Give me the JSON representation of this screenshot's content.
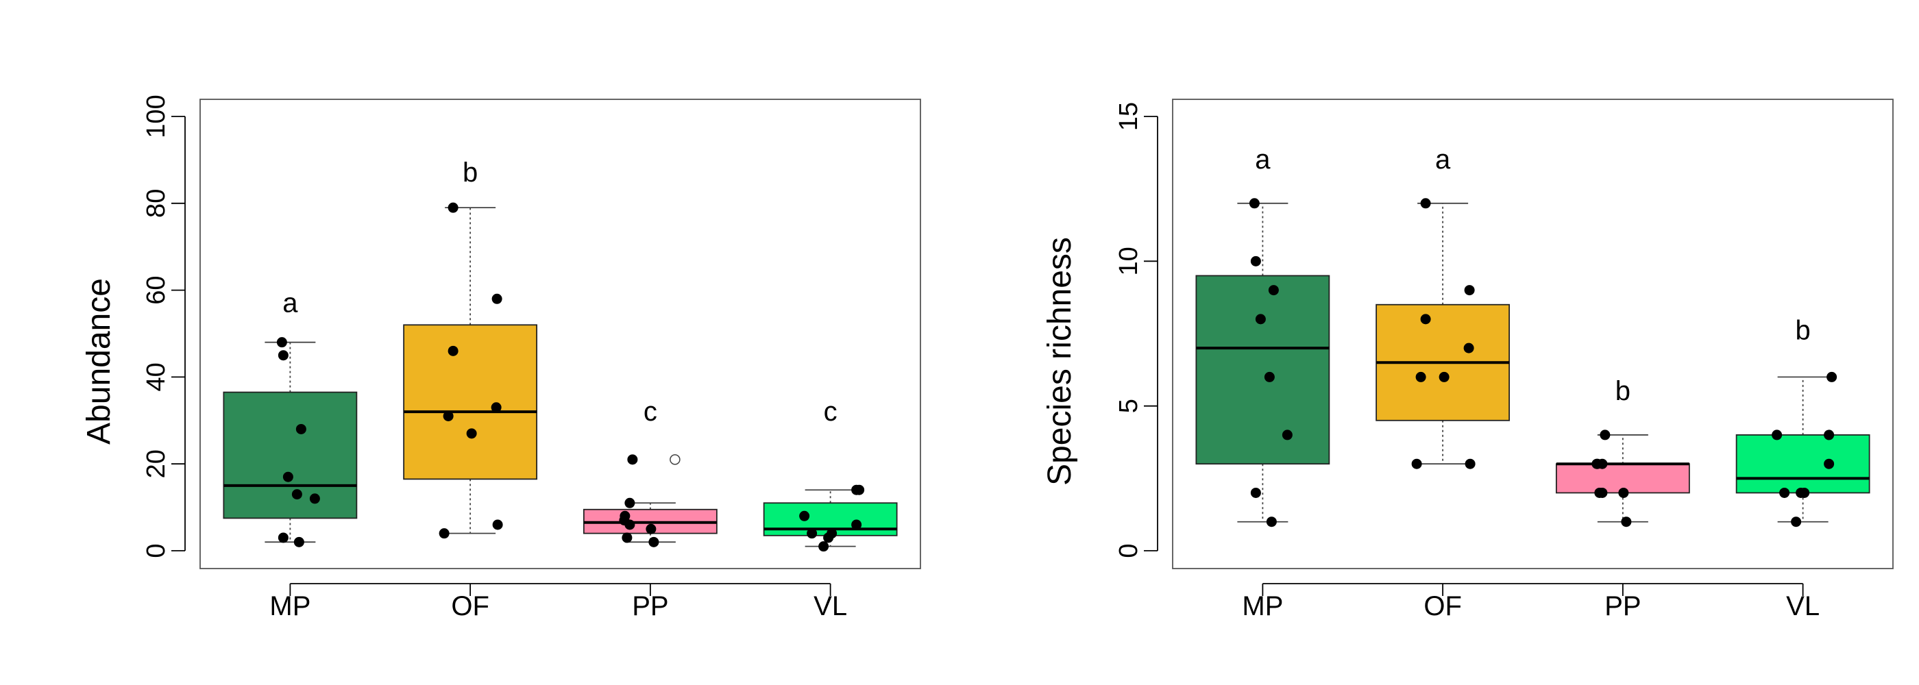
{
  "chart_data": [
    {
      "type": "box",
      "title": "",
      "xlabel": "",
      "ylabel": "Abundance",
      "ylim": [
        0,
        100
      ],
      "yticks": [
        0,
        20,
        40,
        60,
        80,
        100
      ],
      "grid": false,
      "categories": [
        "MP",
        "OF",
        "PP",
        "VL"
      ],
      "colors": [
        "#2e8b57",
        "#eeb422",
        "#ff88aa",
        "#00ee76"
      ],
      "boxes": [
        {
          "category": "MP",
          "whisker_low": 2,
          "q1": 7.5,
          "median": 15,
          "q3": 36.5,
          "whisker_high": 48,
          "outliers": []
        },
        {
          "category": "OF",
          "whisker_low": 4,
          "q1": 16.5,
          "median": 32,
          "q3": 52,
          "whisker_high": 79,
          "outliers": []
        },
        {
          "category": "PP",
          "whisker_low": 2,
          "q1": 4,
          "median": 6.5,
          "q3": 9.5,
          "whisker_high": 11,
          "outliers": [
            21
          ]
        },
        {
          "category": "VL",
          "whisker_low": 1,
          "q1": 3.5,
          "median": 5,
          "q3": 11,
          "whisker_high": 14,
          "outliers": []
        }
      ],
      "points": [
        {
          "category": "MP",
          "values": [
            48,
            45,
            28,
            17,
            13,
            12,
            3,
            2
          ]
        },
        {
          "category": "OF",
          "values": [
            79,
            58,
            46,
            33,
            31,
            27,
            6,
            4
          ]
        },
        {
          "category": "PP",
          "values": [
            21,
            11,
            8,
            7,
            6,
            5,
            3,
            2
          ]
        },
        {
          "category": "VL",
          "values": [
            14,
            14,
            8,
            6,
            4,
            4,
            3,
            1
          ]
        }
      ],
      "letters": [
        "a",
        "b",
        "c",
        "c"
      ],
      "letter_y": [
        55,
        85,
        30,
        30
      ]
    },
    {
      "type": "box",
      "title": "",
      "xlabel": "",
      "ylabel": "Species richness",
      "ylim": [
        0,
        15
      ],
      "yticks": [
        0,
        5,
        10,
        15
      ],
      "grid": false,
      "categories": [
        "MP",
        "OF",
        "PP",
        "VL"
      ],
      "colors": [
        "#2e8b57",
        "#eeb422",
        "#ff88aa",
        "#00ee76"
      ],
      "boxes": [
        {
          "category": "MP",
          "whisker_low": 1,
          "q1": 3,
          "median": 7,
          "q3": 9.5,
          "whisker_high": 12,
          "outliers": []
        },
        {
          "category": "OF",
          "whisker_low": 3,
          "q1": 4.5,
          "median": 6.5,
          "q3": 8.5,
          "whisker_high": 12,
          "outliers": []
        },
        {
          "category": "PP",
          "whisker_low": 1,
          "q1": 2,
          "median": 3,
          "q3": 3,
          "whisker_high": 4,
          "outliers": []
        },
        {
          "category": "VL",
          "whisker_low": 1,
          "q1": 2,
          "median": 2.5,
          "q3": 4,
          "whisker_high": 6,
          "outliers": []
        }
      ],
      "points": [
        {
          "category": "MP",
          "values": [
            12,
            10,
            9,
            8,
            6,
            4,
            2,
            1
          ]
        },
        {
          "category": "OF",
          "values": [
            12,
            9,
            8,
            7,
            6,
            6,
            3,
            3
          ]
        },
        {
          "category": "PP",
          "values": [
            4,
            3,
            3,
            3,
            2,
            2,
            2,
            1
          ]
        },
        {
          "category": "VL",
          "values": [
            6,
            4,
            4,
            3,
            2,
            2,
            2,
            1
          ]
        }
      ],
      "letters": [
        "a",
        "a",
        "b",
        "b"
      ],
      "letter_y": [
        13.2,
        13.2,
        5.2,
        7.3
      ]
    }
  ]
}
